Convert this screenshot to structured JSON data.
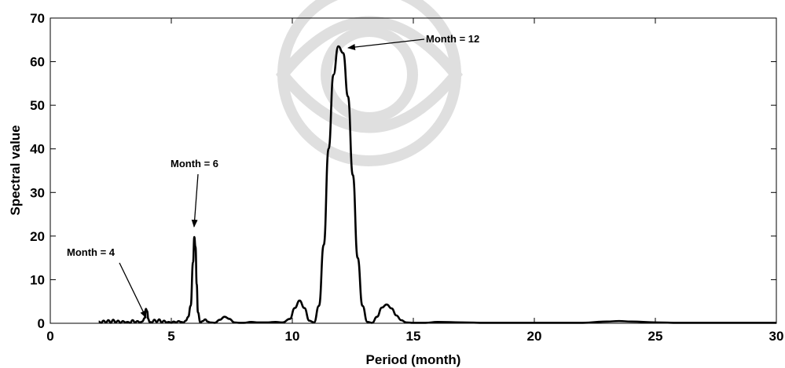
{
  "chart_data": {
    "type": "line",
    "title": "",
    "xlabel": "Period (month)",
    "ylabel": "Spectral value",
    "xlim": [
      0,
      30
    ],
    "ylim": [
      0,
      70
    ],
    "xticks": [
      0,
      5,
      10,
      15,
      20,
      25,
      30
    ],
    "yticks": [
      0,
      10,
      20,
      30,
      40,
      50,
      60,
      70
    ],
    "grid": false,
    "line_color": "#000000",
    "series": [
      {
        "x": [
          2.0,
          2.1,
          2.2,
          2.3,
          2.4,
          2.5,
          2.6,
          2.7,
          2.8,
          2.9,
          3.0,
          3.1,
          3.2,
          3.3,
          3.4,
          3.5,
          3.6,
          3.7,
          3.8,
          3.9,
          3.95,
          4.0,
          4.05,
          4.1,
          4.2,
          4.3,
          4.4,
          4.5,
          4.6,
          4.7,
          4.8,
          4.9,
          5.0,
          5.1,
          5.2,
          5.3,
          5.4,
          5.5,
          5.6,
          5.7,
          5.8,
          5.9,
          5.95,
          6.0,
          6.05,
          6.1,
          6.2,
          6.3,
          6.4,
          6.5,
          6.6,
          6.8,
          7.0,
          7.2,
          7.4,
          7.6,
          7.8,
          8.0,
          8.3,
          8.6,
          9.0,
          9.3,
          9.6,
          9.9,
          10.1,
          10.3,
          10.5,
          10.7,
          10.9,
          11.1,
          11.3,
          11.5,
          11.7,
          11.9,
          12.1,
          12.3,
          12.5,
          12.7,
          12.9,
          13.1,
          13.3,
          13.5,
          13.7,
          13.9,
          14.1,
          14.3,
          14.5,
          14.7,
          15.0,
          15.5,
          16.0,
          17.0,
          18.0,
          19.0,
          20.0,
          21.0,
          22.0,
          23.0,
          23.5,
          24.0,
          25.0,
          26.0,
          27.0,
          28.0,
          29.0,
          30.0
        ],
        "y": [
          0.4,
          0.1,
          0.6,
          0.2,
          0.7,
          0.1,
          0.8,
          0.2,
          0.6,
          0.1,
          0.5,
          0.2,
          0.3,
          0.1,
          0.7,
          0.2,
          0.5,
          0.2,
          0.4,
          1.2,
          3.3,
          2.8,
          1.0,
          0.3,
          0.2,
          0.8,
          0.3,
          0.9,
          0.2,
          0.6,
          0.2,
          0.3,
          0.1,
          0.4,
          0.2,
          0.5,
          0.3,
          0.2,
          0.6,
          1.5,
          4.0,
          14.0,
          19.8,
          17.5,
          9.0,
          2.5,
          0.2,
          0.5,
          0.9,
          0.4,
          0.2,
          0.1,
          0.8,
          1.5,
          1.0,
          0.2,
          0.1,
          0.1,
          0.3,
          0.2,
          0.2,
          0.3,
          0.2,
          1.0,
          3.5,
          5.2,
          3.5,
          0.6,
          0.2,
          4.0,
          18.0,
          40.0,
          57.0,
          63.5,
          62.0,
          52.0,
          34.0,
          15.0,
          4.0,
          0.3,
          0.1,
          1.5,
          3.6,
          4.3,
          3.4,
          1.8,
          0.7,
          0.2,
          0.1,
          0.1,
          0.3,
          0.2,
          0.1,
          0.1,
          0.1,
          0.1,
          0.1,
          0.4,
          0.5,
          0.4,
          0.2,
          0.1,
          0.1,
          0.1,
          0.1,
          0.1
        ]
      }
    ],
    "annotations": [
      {
        "text": "Month = 4",
        "point": [
          4.0,
          3.3
        ]
      },
      {
        "text": "Month = 6",
        "point": [
          6.0,
          20.0
        ]
      },
      {
        "text": "Month = 12",
        "point": [
          12.3,
          63.5
        ]
      }
    ]
  }
}
